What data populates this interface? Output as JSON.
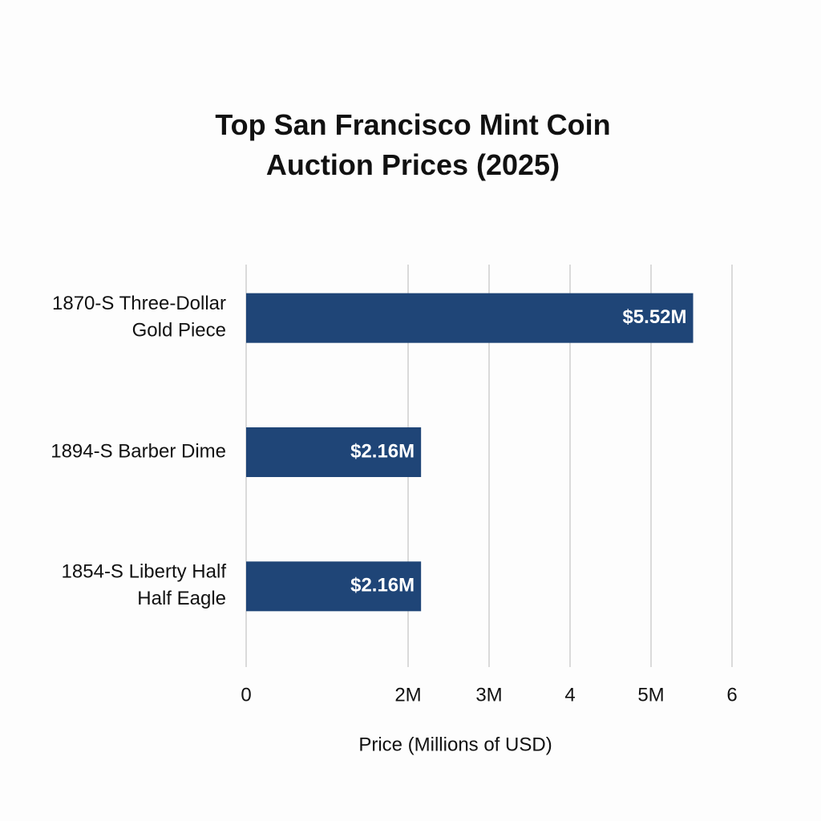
{
  "chart_data": {
    "type": "hbar",
    "title": "Top San Francisco Mint Coin\nAuction Prices (2025)",
    "x_label": "Price (Millions of USD)",
    "categories": [
      "1870-S Three-Dollar\nGold Piece",
      "1894-S Barber Dime",
      "1854-S Liberty Half\nHalf Eagle"
    ],
    "values": [
      5.52,
      2.16,
      2.16
    ],
    "value_labels": [
      "$5.52M",
      "$2.16M",
      "$2.16M"
    ],
    "color": "#1f4577",
    "xlim": [
      0,
      6
    ],
    "xticks": [
      0,
      {
        "value": 2,
        "label": "2M"
      },
      {
        "value": 3,
        "label": "3M"
      },
      4,
      {
        "value": 5,
        "label": "5M"
      },
      6
    ],
    "grid": true
  }
}
